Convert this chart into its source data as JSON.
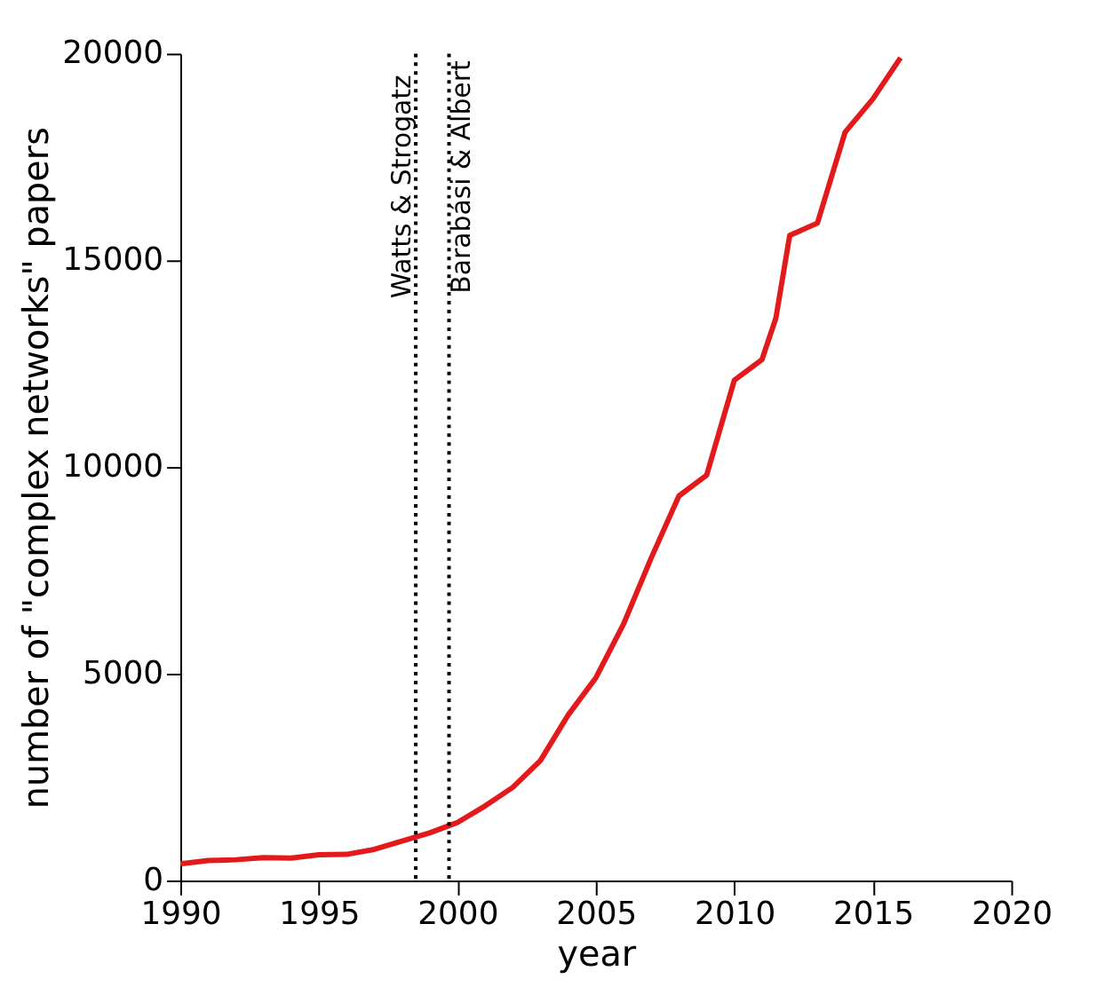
{
  "chart_data": {
    "type": "line",
    "xlabel": "year",
    "ylabel": "number of \"complex networks\" papers",
    "x": [
      1990,
      1991,
      1992,
      1993,
      1994,
      1995,
      1996,
      1997,
      1998,
      1999,
      2000,
      2001,
      2002,
      2003,
      2004,
      2005,
      2006,
      2007,
      2008,
      2009,
      2010,
      2011,
      2011.5,
      2012,
      2013,
      2014,
      2015,
      2016
    ],
    "series": [
      {
        "color": "#e31a1c",
        "values": [
          400,
          480,
          500,
          550,
          540,
          620,
          630,
          750,
          950,
          1150,
          1400,
          1800,
          2250,
          2900,
          4000,
          4900,
          6200,
          7800,
          9300,
          9800,
          12100,
          12600,
          13600,
          15600,
          15900,
          18100,
          18900,
          19900
        ]
      }
    ],
    "xlim": [
      1990,
      2020
    ],
    "xticks": [
      1990,
      1995,
      2000,
      2005,
      2010,
      2015,
      2020
    ],
    "ylim": [
      0,
      20000
    ],
    "yticks": [
      0,
      5000,
      10000,
      15000,
      20000
    ],
    "grid": false,
    "marker": "none",
    "line_style": "solid",
    "ref_lines": [
      {
        "axis": "x",
        "value": 1998.5,
        "label": "Watts & Strogatz",
        "line_style": "dotted"
      },
      {
        "axis": "x",
        "value": 1999.7,
        "label": "Barabási & Albert",
        "line_style": "dotted"
      }
    ]
  }
}
